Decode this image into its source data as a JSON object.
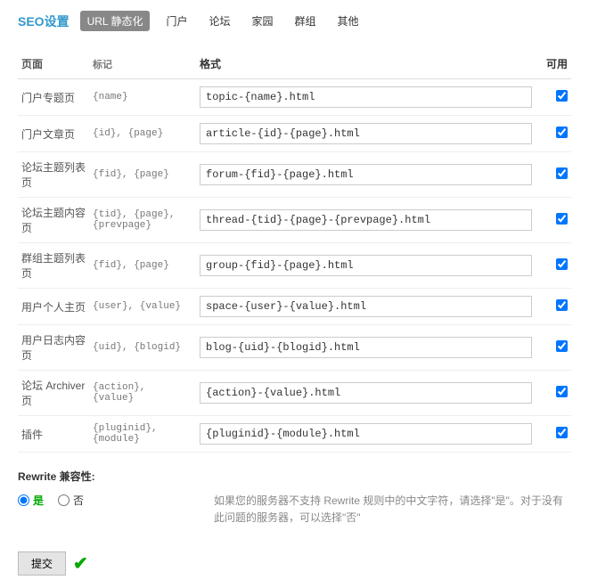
{
  "header": {
    "title": "SEO设置",
    "tabs": [
      "URL 静态化",
      "门户",
      "论坛",
      "家园",
      "群组",
      "其他"
    ],
    "active_tab": 0
  },
  "table": {
    "headers": {
      "page": "页面",
      "tag": "标记",
      "format": "格式",
      "enable": "可用"
    },
    "rows": [
      {
        "page": "门户专题页",
        "tag": "{name}",
        "format": "topic-{name}.html",
        "enabled": true
      },
      {
        "page": "门户文章页",
        "tag": "{id}, {page}",
        "format": "article-{id}-{page}.html",
        "enabled": true
      },
      {
        "page": "论坛主题列表页",
        "tag": "{fid}, {page}",
        "format": "forum-{fid}-{page}.html",
        "enabled": true
      },
      {
        "page": "论坛主题内容页",
        "tag": "{tid}, {page}, {prevpage}",
        "format": "thread-{tid}-{page}-{prevpage}.html",
        "enabled": true
      },
      {
        "page": "群组主题列表页",
        "tag": "{fid}, {page}",
        "format": "group-{fid}-{page}.html",
        "enabled": true
      },
      {
        "page": "用户个人主页",
        "tag": "{user}, {value}",
        "format": "space-{user}-{value}.html",
        "enabled": true
      },
      {
        "page": "用户日志内容页",
        "tag": "{uid}, {blogid}",
        "format": "blog-{uid}-{blogid}.html",
        "enabled": true
      },
      {
        "page": "论坛 Archiver 页",
        "tag": "{action}, {value}",
        "format": "{action}-{value}.html",
        "enabled": true
      },
      {
        "page": "插件",
        "tag": "{pluginid}, {module}",
        "format": "{pluginid}-{module}.html",
        "enabled": true
      }
    ]
  },
  "rewrite": {
    "label": "Rewrite 兼容性:",
    "yes": "是",
    "no": "否",
    "selected": "yes",
    "help": "如果您的服务器不支持 Rewrite 规则中的中文字符，请选择\"是\"。对于没有此问题的服务器，可以选择\"否\""
  },
  "submit": {
    "label": "提交"
  },
  "colors": {
    "title": "#3399cc",
    "tab_active_bg": "#888888",
    "border": "#dddddd",
    "muted": "#888888",
    "success": "#00aa00"
  }
}
